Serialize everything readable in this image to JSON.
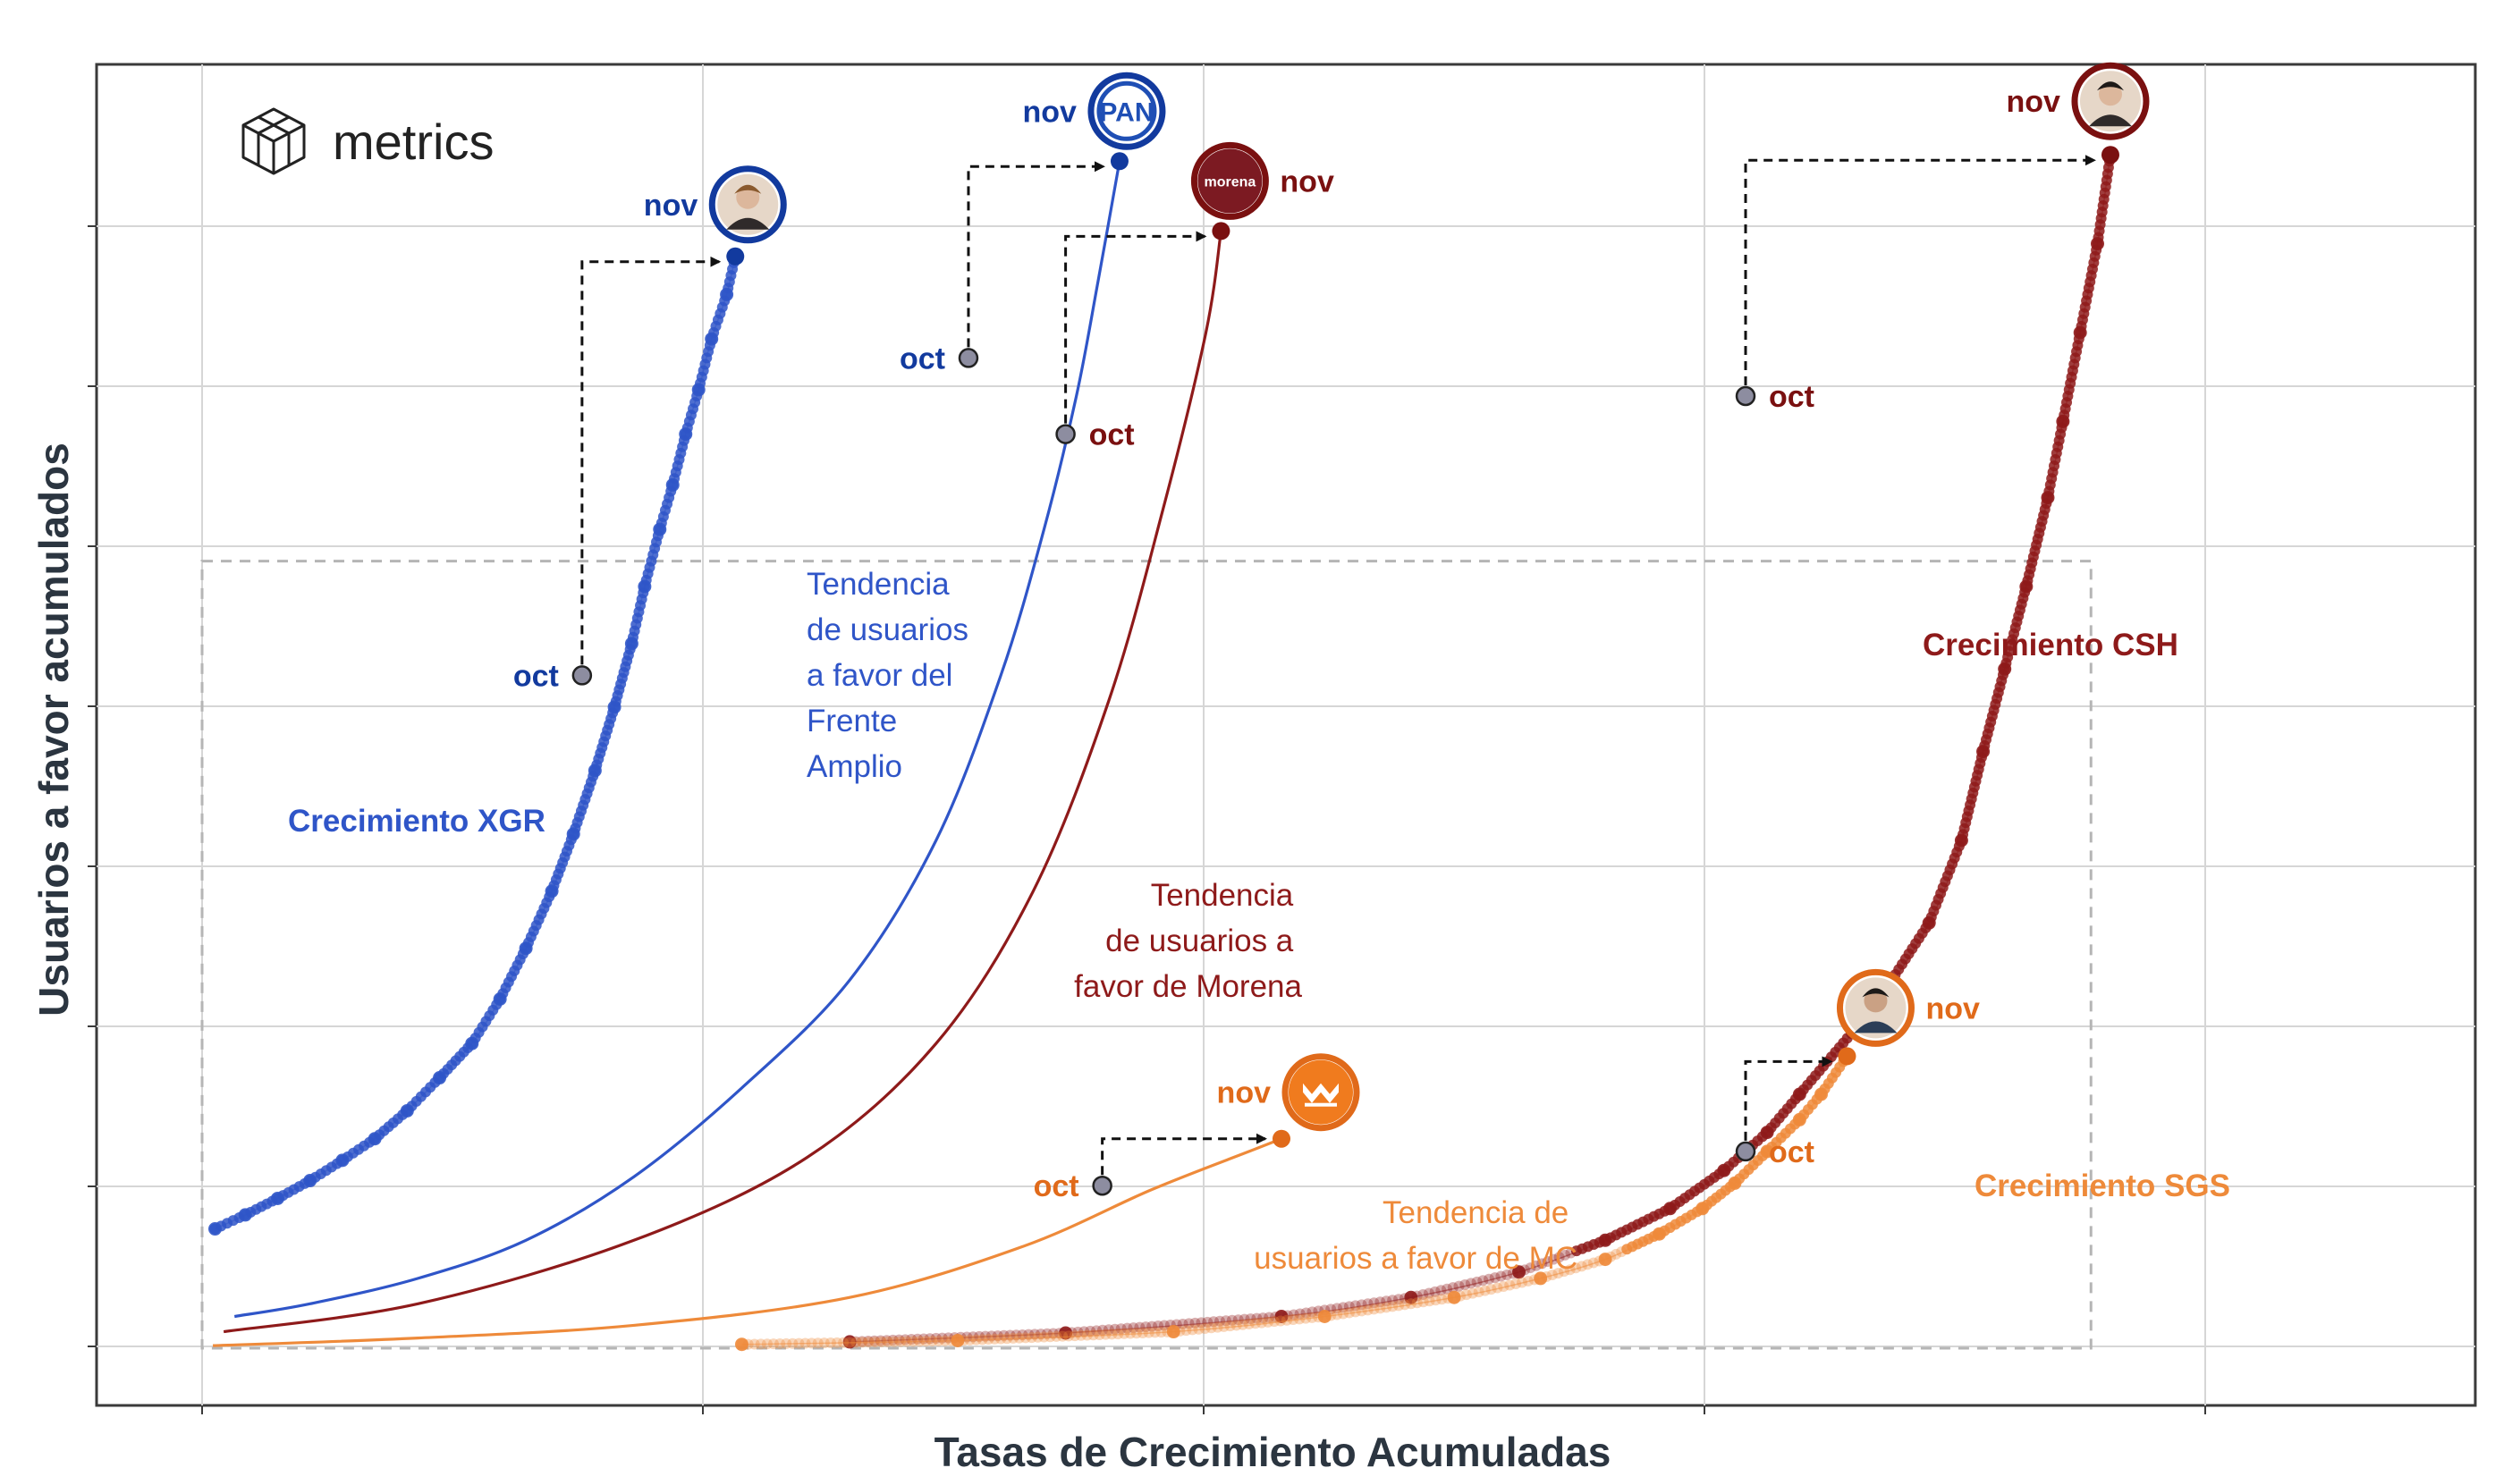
{
  "brand": {
    "name": "metrics"
  },
  "chart_data": {
    "type": "scatter",
    "title": "",
    "xlabel": "Tasas de Crecimiento Acumuladas",
    "ylabel": "Usuarios a favor acumulados",
    "xlim": [
      0,
      100
    ],
    "ylim": [
      0,
      100
    ],
    "grid": true,
    "tick_labels_shown": false,
    "series": [
      {
        "name": "Crecimiento XGR",
        "kind": "points",
        "color": "#2f55c8",
        "values": [
          {
            "x": 0.6,
            "y": 9.4
          },
          {
            "x": 2.0,
            "y": 10.5
          },
          {
            "x": 3.5,
            "y": 11.8
          },
          {
            "x": 5.0,
            "y": 13.2
          },
          {
            "x": 6.5,
            "y": 14.8
          },
          {
            "x": 8.0,
            "y": 16.5
          },
          {
            "x": 9.5,
            "y": 18.7
          },
          {
            "x": 11.0,
            "y": 21.3
          },
          {
            "x": 12.5,
            "y": 24.0
          },
          {
            "x": 13.8,
            "y": 27.5
          },
          {
            "x": 15.0,
            "y": 31.5
          },
          {
            "x": 16.2,
            "y": 36.0
          },
          {
            "x": 17.2,
            "y": 40.5
          },
          {
            "x": 18.2,
            "y": 45.5
          },
          {
            "x": 19.1,
            "y": 50.5
          },
          {
            "x": 19.9,
            "y": 55.5
          },
          {
            "x": 20.5,
            "y": 60.0
          },
          {
            "x": 21.2,
            "y": 64.5
          },
          {
            "x": 21.8,
            "y": 68.0
          },
          {
            "x": 22.4,
            "y": 72.0
          },
          {
            "x": 23.0,
            "y": 75.5
          },
          {
            "x": 23.6,
            "y": 79.5
          },
          {
            "x": 24.3,
            "y": 83.0
          },
          {
            "x": 24.7,
            "y": 86.0
          }
        ],
        "oct": {
          "x": 17.6,
          "y": 53.0
        },
        "nov": {
          "x": 24.7,
          "y": 86.0
        },
        "color_dark": "#123a9e"
      },
      {
        "name": "Tendencia de usuarios a favor del Frente Amplio",
        "kind": "line",
        "color": "#2f55c8",
        "values": [
          {
            "x": 1.5,
            "y": 2.5
          },
          {
            "x": 5.0,
            "y": 3.5
          },
          {
            "x": 10.0,
            "y": 5.5
          },
          {
            "x": 15.0,
            "y": 8.5
          },
          {
            "x": 20.0,
            "y": 13.5
          },
          {
            "x": 25.0,
            "y": 20.5
          },
          {
            "x": 30.0,
            "y": 29.0
          },
          {
            "x": 34.0,
            "y": 40.0
          },
          {
            "x": 37.0,
            "y": 53.0
          },
          {
            "x": 39.0,
            "y": 64.5
          },
          {
            "x": 40.5,
            "y": 75.0
          },
          {
            "x": 41.5,
            "y": 84.0
          },
          {
            "x": 42.5,
            "y": 93.5
          }
        ],
        "oct": {
          "x": 35.5,
          "y": 78.0
        },
        "nov": {
          "x": 42.5,
          "y": 93.5
        },
        "color_dark": "#123a9e"
      },
      {
        "name": "Tendencia de usuarios a favor de Morena",
        "kind": "line",
        "color": "#8e1a1a",
        "values": [
          {
            "x": 1.0,
            "y": 1.3
          },
          {
            "x": 10.0,
            "y": 3.5
          },
          {
            "x": 20.0,
            "y": 8.5
          },
          {
            "x": 28.0,
            "y": 15.0
          },
          {
            "x": 34.0,
            "y": 24.0
          },
          {
            "x": 38.5,
            "y": 36.0
          },
          {
            "x": 42.0,
            "y": 51.0
          },
          {
            "x": 44.5,
            "y": 66.0
          },
          {
            "x": 46.5,
            "y": 80.0
          },
          {
            "x": 47.2,
            "y": 88.0
          }
        ],
        "oct": {
          "x": 40.0,
          "y": 72.0
        },
        "nov": {
          "x": 47.2,
          "y": 88.0
        },
        "color_dark": "#7a1010"
      },
      {
        "name": "Tendencia de usuarios a favor de MC",
        "kind": "line",
        "color": "#ee8a3a",
        "values": [
          {
            "x": 0.5,
            "y": 0.2
          },
          {
            "x": 10.0,
            "y": 0.8
          },
          {
            "x": 20.0,
            "y": 1.8
          },
          {
            "x": 30.0,
            "y": 4.0
          },
          {
            "x": 38.0,
            "y": 8.0
          },
          {
            "x": 44.0,
            "y": 12.5
          },
          {
            "x": 48.5,
            "y": 15.5
          },
          {
            "x": 50.0,
            "y": 16.5
          }
        ],
        "oct": {
          "x": 41.7,
          "y": 12.8
        },
        "nov": {
          "x": 50.0,
          "y": 16.5
        },
        "color_dark": "#e06a1a"
      },
      {
        "name": "Crecimiento CSH",
        "kind": "points",
        "color": "#8e1a1a",
        "values": [
          {
            "x": 30.0,
            "y": 0.5
          },
          {
            "x": 40.0,
            "y": 1.2
          },
          {
            "x": 50.0,
            "y": 2.5
          },
          {
            "x": 56.0,
            "y": 4.0
          },
          {
            "x": 61.0,
            "y": 6.0
          },
          {
            "x": 65.0,
            "y": 8.5
          },
          {
            "x": 68.0,
            "y": 11.0
          },
          {
            "x": 70.5,
            "y": 14.0
          },
          {
            "x": 72.5,
            "y": 17.0
          },
          {
            "x": 74.0,
            "y": 20.0
          },
          {
            "x": 77.5,
            "y": 27.0
          },
          {
            "x": 80.0,
            "y": 33.5
          },
          {
            "x": 81.5,
            "y": 40.0
          },
          {
            "x": 82.5,
            "y": 47.0
          },
          {
            "x": 83.5,
            "y": 53.5
          },
          {
            "x": 84.5,
            "y": 60.0
          },
          {
            "x": 85.5,
            "y": 67.0
          },
          {
            "x": 86.2,
            "y": 73.0
          },
          {
            "x": 87.0,
            "y": 80.0
          },
          {
            "x": 87.8,
            "y": 87.0
          },
          {
            "x": 88.4,
            "y": 94.0
          }
        ],
        "oct": {
          "x": 71.5,
          "y": 75.0
        },
        "nov": {
          "x": 88.4,
          "y": 94.0
        },
        "color_dark": "#7a1010"
      },
      {
        "name": "Crecimiento SGS",
        "kind": "points",
        "color": "#ee8a3a",
        "values": [
          {
            "x": 25.0,
            "y": 0.3
          },
          {
            "x": 35.0,
            "y": 0.6
          },
          {
            "x": 45.0,
            "y": 1.3
          },
          {
            "x": 52.0,
            "y": 2.5
          },
          {
            "x": 58.0,
            "y": 4.0
          },
          {
            "x": 62.0,
            "y": 5.5
          },
          {
            "x": 65.0,
            "y": 7.0
          },
          {
            "x": 67.5,
            "y": 9.0
          },
          {
            "x": 69.5,
            "y": 11.0
          },
          {
            "x": 71.0,
            "y": 13.0
          },
          {
            "x": 72.5,
            "y": 15.5
          },
          {
            "x": 74.0,
            "y": 18.0
          },
          {
            "x": 75.0,
            "y": 20.0
          },
          {
            "x": 76.2,
            "y": 23.0
          }
        ],
        "oct": {
          "x": 71.5,
          "y": 15.5
        },
        "nov": {
          "x": 76.2,
          "y": 23.0
        },
        "color_dark": "#e06a1a"
      }
    ],
    "annotations": [
      {
        "series": "Crecimiento XGR",
        "month_start": "oct",
        "month_end": "nov"
      },
      {
        "series": "Tendencia de usuarios a favor del Frente Amplio",
        "month_start": "oct",
        "month_end": "nov"
      },
      {
        "series": "Tendencia de usuarios a favor de Morena",
        "month_start": "oct",
        "month_end": "nov"
      },
      {
        "series": "Tendencia de usuarios a favor de MC",
        "month_start": "oct",
        "month_end": "nov"
      },
      {
        "series": "Crecimiento CSH",
        "month_start": "oct",
        "month_end": "nov"
      },
      {
        "series": "Crecimiento SGS",
        "month_start": "oct",
        "month_end": "nov"
      }
    ],
    "badges": [
      {
        "series": "Crecimiento XGR",
        "icon": "candidate-xgr-avatar-icon"
      },
      {
        "series": "Tendencia de usuarios a favor del Frente Amplio",
        "icon": "pan-logo-icon",
        "text": "PAN"
      },
      {
        "series": "Tendencia de usuarios a favor de Morena",
        "icon": "morena-logo-icon",
        "text": "morena"
      },
      {
        "series": "Tendencia de usuarios a favor de MC",
        "icon": "mc-logo-icon"
      },
      {
        "series": "Crecimiento CSH",
        "icon": "candidate-csh-avatar-icon"
      },
      {
        "series": "Crecimiento SGS",
        "icon": "candidate-sgs-avatar-icon"
      }
    ],
    "highlight_box": {
      "x0": 0,
      "x1": 87.5,
      "y0": 0,
      "y1": 62.0
    }
  }
}
